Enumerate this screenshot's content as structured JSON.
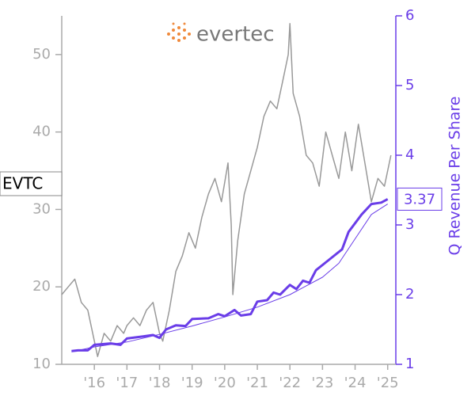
{
  "chart_data": {
    "type": "line",
    "logo": "evertec",
    "ticker": "EVTC",
    "y2label": "Q Revenue Per Share",
    "xlim": [
      2015,
      2025.25
    ],
    "xticks": [
      {
        "value": 2016,
        "label": "'16"
      },
      {
        "value": 2017,
        "label": "'17"
      },
      {
        "value": 2018,
        "label": "'18"
      },
      {
        "value": 2019,
        "label": "'19"
      },
      {
        "value": 2020,
        "label": "'20"
      },
      {
        "value": 2021,
        "label": "'21"
      },
      {
        "value": 2022,
        "label": "'22"
      },
      {
        "value": 2023,
        "label": "'23"
      },
      {
        "value": 2024,
        "label": "'24"
      },
      {
        "value": 2025,
        "label": "'25"
      }
    ],
    "ylim": [
      10,
      55
    ],
    "yticks": [
      10,
      20,
      30,
      40,
      50
    ],
    "y2lim": [
      1,
      6
    ],
    "y2ticks": [
      1,
      2,
      3,
      4,
      5,
      6
    ],
    "series": [
      {
        "color": "#999999",
        "axis": "y",
        "width": 1.5,
        "x": [
          2015.0,
          2015.2,
          2015.4,
          2015.6,
          2015.8,
          2016.0,
          2016.1,
          2016.3,
          2016.5,
          2016.7,
          2016.9,
          2017.0,
          2017.2,
          2017.4,
          2017.6,
          2017.8,
          2018.0,
          2018.1,
          2018.3,
          2018.5,
          2018.7,
          2018.9,
          2019.1,
          2019.3,
          2019.5,
          2019.7,
          2019.9,
          2020.1,
          2020.2,
          2020.25,
          2020.4,
          2020.6,
          2020.8,
          2021.0,
          2021.2,
          2021.4,
          2021.6,
          2021.8,
          2021.95,
          2022.0,
          2022.1,
          2022.3,
          2022.5,
          2022.7,
          2022.9,
          2023.1,
          2023.3,
          2023.5,
          2023.7,
          2023.9,
          2024.1,
          2024.3,
          2024.5,
          2024.7,
          2024.9,
          2025.1
        ],
        "values": [
          19,
          20,
          21,
          18,
          17,
          13,
          11,
          14,
          13,
          15,
          14,
          15,
          16,
          15,
          17,
          18,
          14,
          13,
          17,
          22,
          24,
          27,
          25,
          29,
          32,
          34,
          31,
          36,
          28,
          19,
          26,
          32,
          35,
          38,
          42,
          44,
          43,
          47,
          50,
          54,
          45,
          42,
          37,
          36,
          33,
          40,
          37,
          34,
          40,
          35,
          41,
          36,
          31,
          34,
          33,
          37
        ]
      },
      {
        "color": "#6a3de8",
        "axis": "y2",
        "width": 3,
        "x": [
          2015.3,
          2015.5,
          2015.8,
          2016.0,
          2016.5,
          2016.8,
          2017.0,
          2017.5,
          2017.8,
          2018.0,
          2018.2,
          2018.5,
          2018.8,
          2019.0,
          2019.5,
          2019.8,
          2020.0,
          2020.3,
          2020.5,
          2020.8,
          2021.0,
          2021.3,
          2021.5,
          2021.7,
          2022.0,
          2022.2,
          2022.4,
          2022.6,
          2022.8,
          2023.2,
          2023.6,
          2023.8,
          2024.2,
          2024.5,
          2024.8,
          2025.0
        ],
        "values": [
          1.19,
          1.2,
          1.2,
          1.28,
          1.3,
          1.28,
          1.37,
          1.4,
          1.42,
          1.38,
          1.5,
          1.56,
          1.55,
          1.65,
          1.66,
          1.72,
          1.69,
          1.78,
          1.7,
          1.72,
          1.9,
          1.92,
          2.03,
          2.0,
          2.14,
          2.08,
          2.2,
          2.17,
          2.35,
          2.5,
          2.65,
          2.9,
          3.15,
          3.3,
          3.32,
          3.37
        ]
      },
      {
        "color": "#6a3de8",
        "axis": "y2",
        "width": 1,
        "x": [
          2015.3,
          2016.0,
          2017.0,
          2018.0,
          2019.0,
          2020.0,
          2021.0,
          2022.0,
          2023.0,
          2023.5,
          2024.0,
          2024.5,
          2025.0
        ],
        "values": [
          1.18,
          1.25,
          1.32,
          1.43,
          1.55,
          1.68,
          1.82,
          2.0,
          2.25,
          2.45,
          2.8,
          3.15,
          3.3
        ]
      }
    ]
  }
}
